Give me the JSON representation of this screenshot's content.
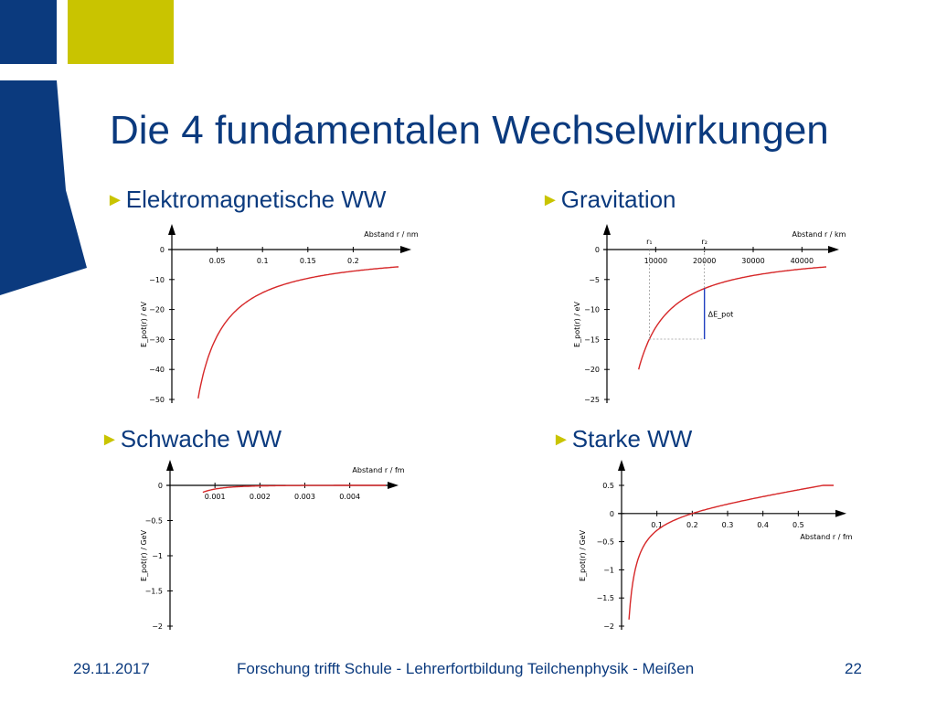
{
  "slide": {
    "title": "Die 4 fundamentalen Wechselwirkungen",
    "bullets": {
      "em": "Elektromagnetische WW",
      "grav": "Gravitation",
      "weak": "Schwache WW",
      "strong": "Starke WW"
    },
    "bullet_marker": "►"
  },
  "footer": {
    "date": "29.11.2017",
    "center": "Forschung trifft Schule - Lehrerfortbildung Teilchenphysik - Meißen",
    "page": "22"
  },
  "colors": {
    "brand_blue": "#0b3a7e",
    "brand_yellow": "#c9c400",
    "curve_red": "#d62728",
    "marker_blue": "#1f3fbf"
  },
  "chart_data": [
    {
      "id": "em",
      "type": "line",
      "title": "",
      "xlabel": "Abstand  r  /  nm",
      "ylabel": "E_pot(r) / eV",
      "x_ticks": [
        0.05,
        0.1,
        0.15,
        0.2
      ],
      "x_tick_labels": [
        "0.05",
        "0.1",
        "0.15",
        "0.2"
      ],
      "y_ticks": [
        0,
        -10,
        -20,
        -30,
        -40,
        -50
      ],
      "y_tick_labels": [
        "0",
        "−10",
        "−20",
        "−30",
        "−40",
        "−50"
      ],
      "xlim": [
        0,
        0.25
      ],
      "ylim": [
        -50,
        0
      ],
      "x_axis_position": "top",
      "series": [
        {
          "formula": "-1.44/r",
          "x_start": 0.029,
          "x_end": 0.25
        }
      ]
    },
    {
      "id": "grav",
      "type": "line",
      "title": "",
      "xlabel": "Abstand  r  /  km",
      "ylabel": "E_pot(r) / eV",
      "x_ticks": [
        10000,
        20000,
        30000,
        40000
      ],
      "x_tick_labels": [
        "10000",
        "20000",
        "30000",
        "40000"
      ],
      "y_ticks": [
        0,
        -5,
        -10,
        -15,
        -20,
        -25
      ],
      "y_tick_labels": [
        "0",
        "−5",
        "−10",
        "−15",
        "−20",
        "−25"
      ],
      "xlim": [
        0,
        45000
      ],
      "ylim": [
        -25,
        0
      ],
      "x_axis_position": "top",
      "series": [
        {
          "formula": "-130000/r",
          "x_start": 6500,
          "x_end": 45000
        }
      ],
      "annotations": {
        "r1_label": "r₁",
        "r1": 8700,
        "r2_label": "r₂",
        "r2": 20000,
        "delta_label": "ΔE_pot"
      }
    },
    {
      "id": "weak",
      "type": "line",
      "title": "",
      "xlabel": "Abstand  r  /  fm",
      "ylabel": "E_pot(r) / GeV",
      "x_ticks": [
        0.001,
        0.002,
        0.003,
        0.004
      ],
      "x_tick_labels": [
        "0.001",
        "0.002",
        "0.003",
        "0.004"
      ],
      "y_ticks": [
        0,
        -0.5,
        -1,
        -1.5,
        -2
      ],
      "y_tick_labels": [
        "0",
        "−0.5",
        "−1",
        "−1.5",
        "−2"
      ],
      "xlim": [
        0,
        0.0048
      ],
      "ylim": [
        -2,
        0
      ],
      "x_axis_position": "top",
      "series": [
        {
          "formula": "-exp(-r/0.00085)*0.00017/r",
          "x_start": 0.00073,
          "x_end": 0.0048
        }
      ]
    },
    {
      "id": "strong",
      "type": "line",
      "title": "",
      "xlabel": "Abstand  r  /  fm",
      "ylabel": "E_pot(r) / GeV",
      "x_ticks": [
        0.1,
        0.2,
        0.3,
        0.4,
        0.5
      ],
      "x_tick_labels": [
        "0.1",
        "0.2",
        "0.3",
        "0.4",
        "0.5"
      ],
      "y_ticks": [
        0.5,
        0,
        -0.5,
        -1,
        -1.5,
        -2
      ],
      "y_tick_labels": [
        "0.5",
        "0",
        "−0.5",
        "−1",
        "−1.5",
        "−2"
      ],
      "xlim": [
        0,
        0.6
      ],
      "ylim": [
        -2,
        0.5
      ],
      "x_axis_position": "zero",
      "series": [
        {
          "formula": "-0.04/r + r",
          "x_start": 0.021,
          "x_end": 0.6
        }
      ]
    }
  ]
}
